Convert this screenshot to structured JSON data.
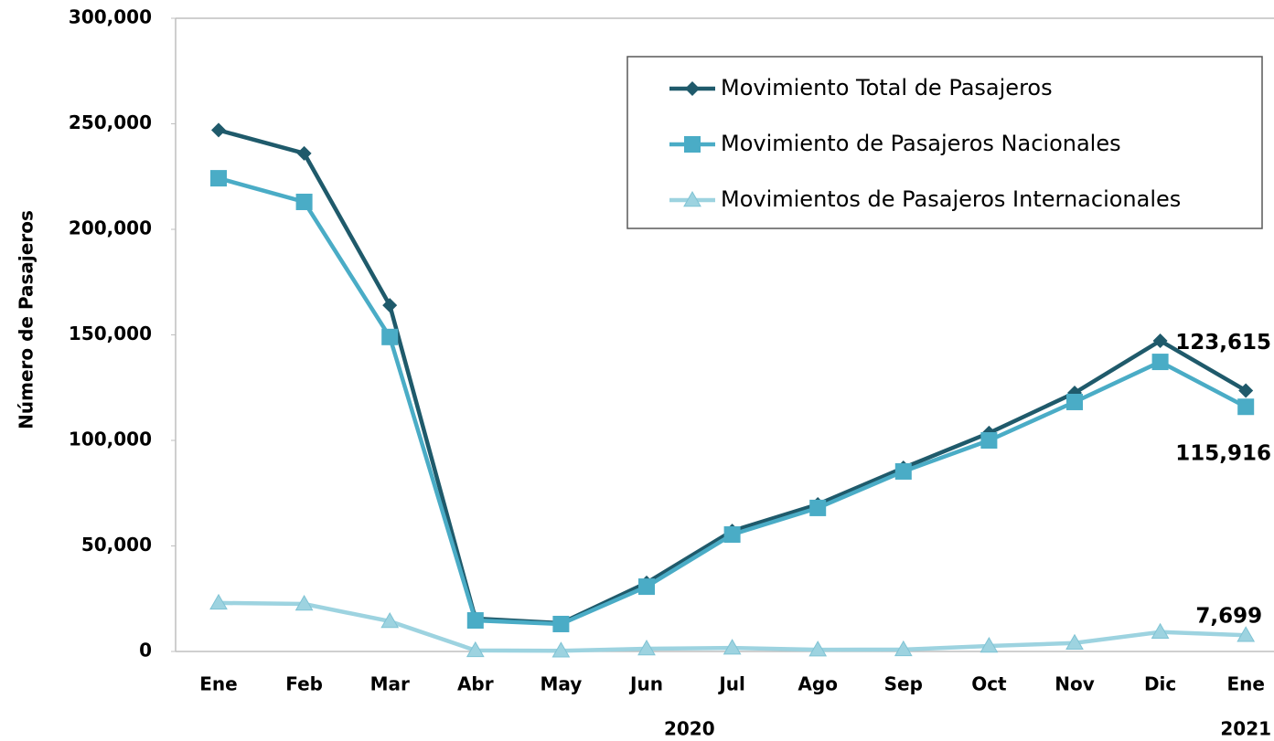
{
  "chart_data": {
    "type": "line",
    "y_label": "Número de Pasajeros",
    "categories": [
      "Ene",
      "Feb",
      "Mar",
      "Abr",
      "May",
      "Jun",
      "Jul",
      "Ago",
      "Sep",
      "Oct",
      "Nov",
      "Dic",
      "Ene"
    ],
    "year_labels": [
      {
        "label": "2020",
        "from": 0,
        "to": 11
      },
      {
        "label": "2021",
        "from": 12,
        "to": 12
      }
    ],
    "series": [
      {
        "name": "Movimiento Total de Pasajeros",
        "color": "#1f5a6b",
        "marker": "diamond",
        "values": [
          247000,
          236000,
          164000,
          15600,
          13400,
          32500,
          57100,
          69700,
          87000,
          103500,
          122500,
          147200,
          123615
        ],
        "value_labels": [
          null,
          null,
          null,
          null,
          null,
          null,
          null,
          null,
          null,
          null,
          null,
          null,
          "123,615"
        ]
      },
      {
        "name": "Movimiento de Pasajeros Nacionales",
        "color": "#4aacc6",
        "marker": "square",
        "values": [
          224200,
          213000,
          149000,
          14700,
          13000,
          30700,
          55400,
          68000,
          85300,
          100000,
          118200,
          137200,
          115916
        ],
        "value_labels": [
          null,
          null,
          null,
          null,
          null,
          null,
          null,
          null,
          null,
          null,
          null,
          null,
          "115,916"
        ]
      },
      {
        "name": "Movimientos de Pasajeros Internacionales",
        "color": "#9dd3e0",
        "marker": "triangle",
        "values": [
          23000,
          22500,
          14300,
          500,
          300,
          1300,
          1700,
          800,
          900,
          2600,
          4000,
          9200,
          7699
        ],
        "value_labels": [
          null,
          null,
          null,
          null,
          null,
          null,
          null,
          null,
          null,
          null,
          null,
          null,
          "7,699"
        ]
      }
    ],
    "ylim": [
      0,
      300000
    ],
    "yticks": [
      0,
      {
        "value": 50000,
        "label": "50,000"
      },
      {
        "value": 100000,
        "label": "100,000"
      },
      {
        "value": 150000,
        "label": "150,000"
      },
      {
        "value": 200000,
        "label": "200,000"
      },
      {
        "value": 250000,
        "label": "250,000"
      },
      {
        "value": 300000,
        "label": "300,000"
      }
    ],
    "grid": false,
    "legend": "upper right"
  }
}
